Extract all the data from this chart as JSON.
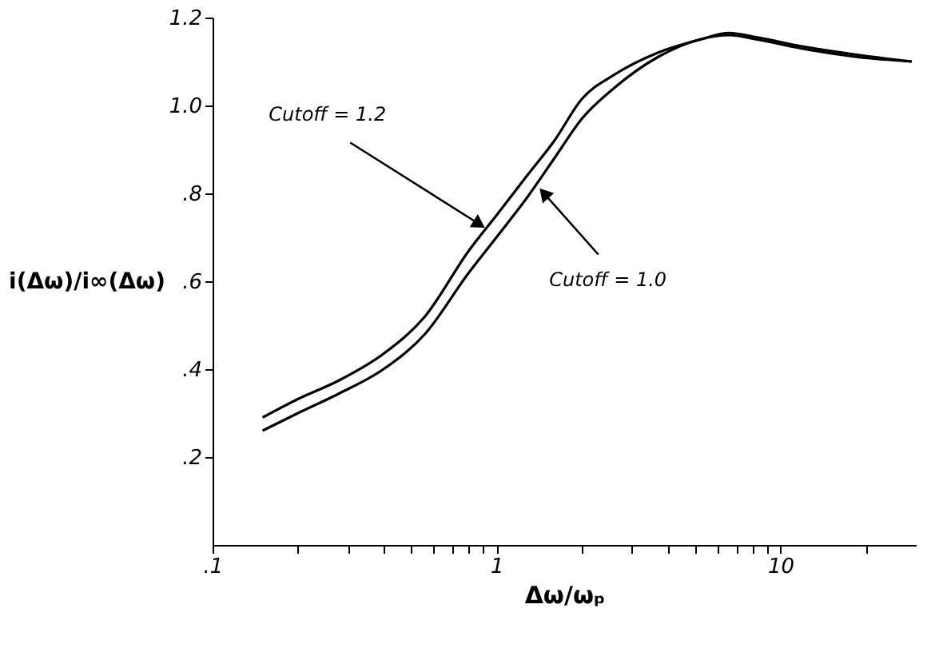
{
  "chart_data": {
    "type": "line",
    "xlabel": "Δω/ωₚ",
    "ylabel": "i(Δω)/i∞(Δω)",
    "log": "x",
    "marker": "none",
    "line_style": "solid",
    "xlim": [
      0.1,
      30
    ],
    "ylim": [
      0,
      1.2
    ],
    "xticks": [
      {
        "value": 0.1,
        "label": ".1"
      },
      {
        "value": 0.2,
        "label": null
      },
      {
        "value": 0.3,
        "label": null
      },
      {
        "value": 0.4,
        "label": null
      },
      {
        "value": 0.5,
        "label": null
      },
      {
        "value": 0.6,
        "label": null
      },
      {
        "value": 0.7,
        "label": null
      },
      {
        "value": 0.8,
        "label": null
      },
      {
        "value": 0.9,
        "label": null
      },
      1,
      {
        "value": 2,
        "label": null
      },
      {
        "value": 3,
        "label": null
      },
      {
        "value": 4,
        "label": null
      },
      {
        "value": 5,
        "label": null
      },
      {
        "value": 6,
        "label": null
      },
      {
        "value": 7,
        "label": null
      },
      {
        "value": 8,
        "label": null
      },
      {
        "value": 9,
        "label": null
      },
      10,
      {
        "value": 20,
        "label": null
      }
    ],
    "yticks": [
      {
        "value": 0.2,
        "label": ".2"
      },
      {
        "value": 0.4,
        "label": ".4"
      },
      {
        "value": 0.6,
        "label": ".6"
      },
      {
        "value": 0.8,
        "label": ".8"
      },
      {
        "value": 1.0,
        "label": "1.0"
      },
      {
        "value": 1.2,
        "label": "1.2"
      }
    ],
    "series": [
      {
        "color": "#000000",
        "x": [
          0.15,
          0.197,
          0.28,
          0.4,
          0.56,
          0.8,
          1.0,
          1.28,
          1.6,
          2.0,
          2.6,
          3.7,
          5.2,
          6.6,
          8.3,
          11.8,
          18.8,
          29
        ],
        "values": [
          0.29,
          0.33,
          0.375,
          0.435,
          0.52,
          0.67,
          0.75,
          0.84,
          0.92,
          1.015,
          1.07,
          1.12,
          1.15,
          1.165,
          1.155,
          1.135,
          1.115,
          1.1
        ]
      },
      {
        "color": "#000000",
        "x": [
          0.15,
          0.2,
          0.28,
          0.4,
          0.56,
          0.8,
          1.0,
          1.28,
          1.6,
          2.0,
          2.6,
          3.7,
          5.2,
          6.6,
          8.3,
          11.8,
          18.8,
          29
        ],
        "values": [
          0.26,
          0.3,
          0.345,
          0.4,
          0.48,
          0.62,
          0.7,
          0.79,
          0.88,
          0.97,
          1.04,
          1.11,
          1.15,
          1.16,
          1.15,
          1.13,
          1.11,
          1.1
        ]
      }
    ],
    "annotations": [
      {
        "text": "Cutoff = 1.2",
        "x": 0.87,
        "y": 0.73
      },
      {
        "text": "Cutoff = 1.0",
        "x": 1.47,
        "y": 0.8
      }
    ]
  }
}
